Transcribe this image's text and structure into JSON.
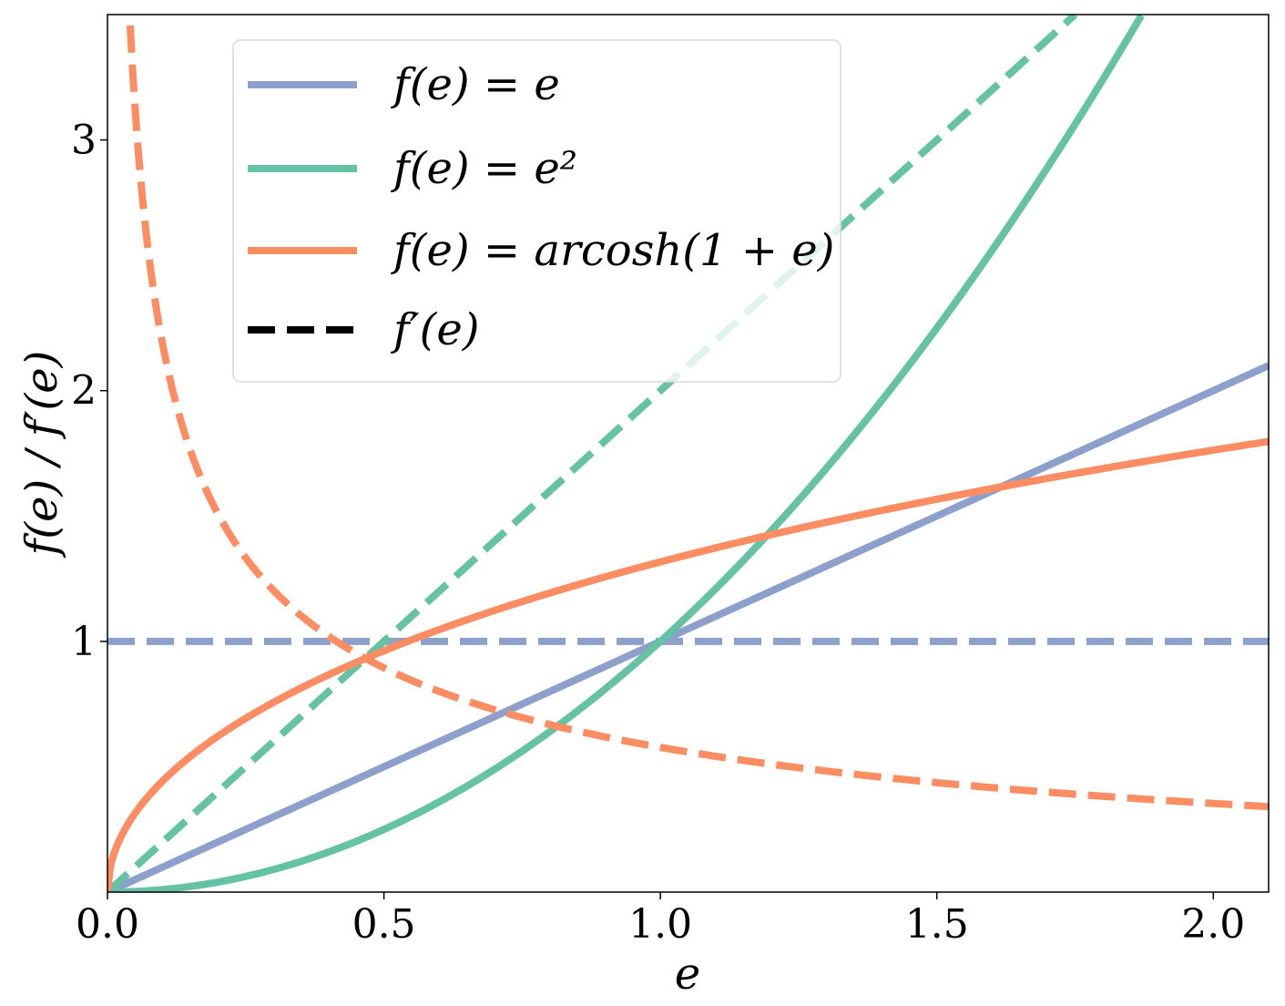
{
  "chart_data": {
    "type": "line",
    "xlabel": "e",
    "ylabel": "f(e) / f′(e)",
    "xlim": [
      0,
      2.1
    ],
    "ylim": [
      0,
      3.5
    ],
    "x_ticks": [
      0.0,
      0.5,
      1.0,
      1.5,
      2.0
    ],
    "x_tick_labels": [
      "0.0",
      "0.5",
      "1.0",
      "1.5",
      "2.0"
    ],
    "y_ticks": [
      1,
      2,
      3
    ],
    "y_tick_labels": [
      "1",
      "2",
      "3"
    ],
    "grid": false,
    "legend_position": "upper-center",
    "legend": [
      {
        "label": "f(e) = e",
        "style": "solid",
        "color": "#8da0cb"
      },
      {
        "label": "f(e) = e²",
        "style": "solid",
        "color": "#66c2a5"
      },
      {
        "label": "f(e) = arcosh(1 + e)",
        "style": "solid",
        "color": "#fc8d62"
      },
      {
        "label": "f′(e)",
        "style": "dashed",
        "color": "#000000"
      }
    ],
    "series": [
      {
        "function": "e",
        "kind": "f",
        "style": "solid",
        "color": "#8da0cb",
        "x": [
          0,
          0.5,
          1.0,
          1.5,
          2.0,
          2.1
        ],
        "y": [
          0,
          0.5,
          1.0,
          1.5,
          2.0,
          2.1
        ]
      },
      {
        "function": "e",
        "kind": "f′",
        "style": "dashed",
        "color": "#8da0cb",
        "x": [
          0,
          0.5,
          1.0,
          1.5,
          2.0,
          2.1
        ],
        "y": [
          1,
          1,
          1,
          1,
          1,
          1
        ]
      },
      {
        "function": "e²",
        "kind": "f",
        "style": "solid",
        "color": "#66c2a5",
        "x": [
          0,
          0.25,
          0.5,
          0.75,
          1.0,
          1.25,
          1.5,
          1.75,
          1.87
        ],
        "y": [
          0,
          0.0625,
          0.25,
          0.5625,
          1.0,
          1.5625,
          2.25,
          3.0625,
          3.5
        ]
      },
      {
        "function": "e²",
        "kind": "f′",
        "style": "dashed",
        "color": "#66c2a5",
        "x": [
          0,
          0.5,
          1.0,
          1.5,
          1.75
        ],
        "y": [
          0,
          1.0,
          2.0,
          3.0,
          3.5
        ]
      },
      {
        "function": "arcosh(1 + e)",
        "kind": "f",
        "style": "solid",
        "color": "#fc8d62",
        "x": [
          0,
          0.05,
          0.1,
          0.25,
          0.5,
          0.75,
          1.0,
          1.25,
          1.5,
          1.75,
          2.0,
          2.1
        ],
        "y": [
          0,
          0.315,
          0.443,
          0.693,
          0.962,
          1.159,
          1.317,
          1.45,
          1.567,
          1.67,
          1.763,
          1.798
        ]
      },
      {
        "function": "arcosh(1 + e)",
        "kind": "f′",
        "style": "dashed",
        "color": "#fc8d62",
        "x": [
          0.041,
          0.05,
          0.1,
          0.25,
          0.5,
          0.75,
          1.0,
          1.25,
          1.5,
          1.75,
          2.0,
          2.1
        ],
        "y": [
          3.5,
          3.203,
          2.182,
          1.333,
          0.894,
          0.69,
          0.577,
          0.5,
          0.447,
          0.408,
          0.378,
          0.367
        ]
      }
    ]
  }
}
